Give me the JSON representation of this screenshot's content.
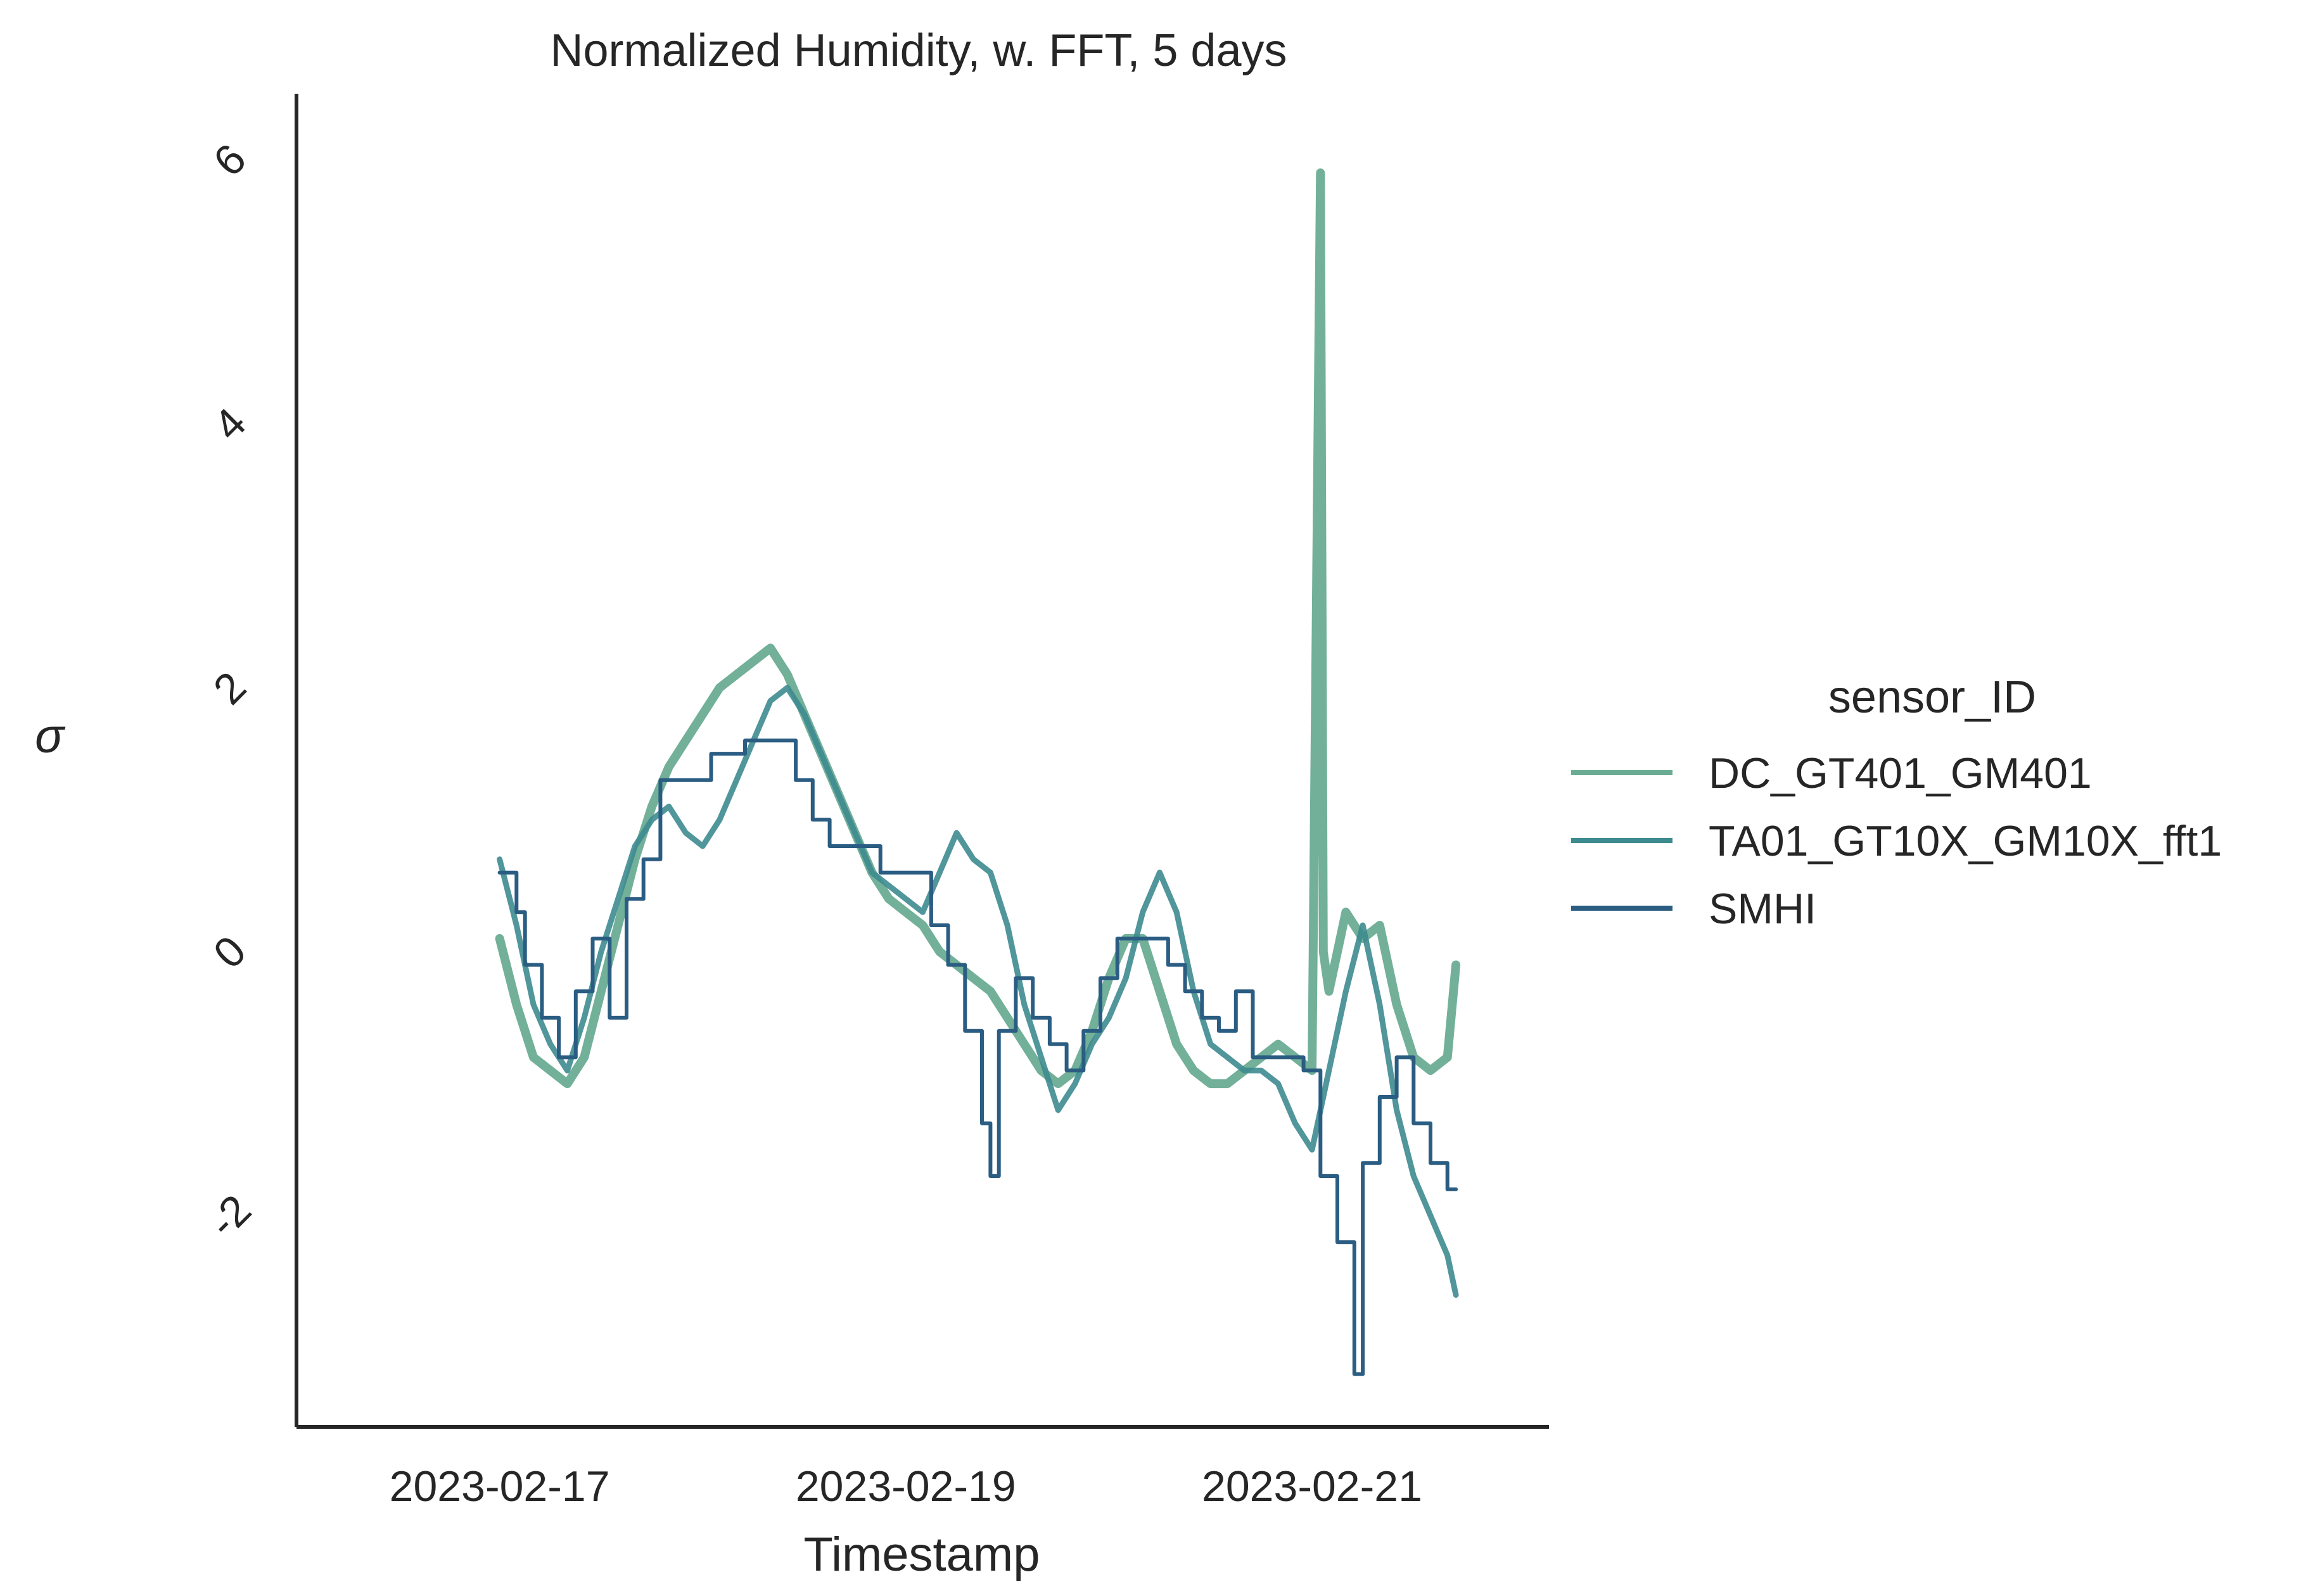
{
  "chart_data": {
    "type": "line",
    "title": "Normalized Humidity, w. FFT, 5 days",
    "xlabel": "Timestamp",
    "ylabel": "σ",
    "x_ticks": [
      "2023-02-17",
      "2023-02-19",
      "2023-02-21"
    ],
    "y_ticks": [
      -2,
      0,
      2,
      4,
      6
    ],
    "xlim": [
      "2023-02-16 00:00",
      "2023-02-22 04:00"
    ],
    "ylim": [
      -3.6,
      6.5
    ],
    "grid": false,
    "legend": {
      "title": "sensor_ID",
      "placement": "right"
    },
    "series": [
      {
        "name": "DC_GT401_GM401",
        "color": "#6aac93",
        "points": [
          [
            "2023-02-17 00:00",
            0.1
          ],
          [
            "2023-02-17 02:00",
            -0.4
          ],
          [
            "2023-02-17 04:00",
            -0.8
          ],
          [
            "2023-02-17 06:00",
            -0.9
          ],
          [
            "2023-02-17 08:00",
            -1.0
          ],
          [
            "2023-02-17 10:00",
            -0.8
          ],
          [
            "2023-02-17 12:00",
            -0.3
          ],
          [
            "2023-02-17 14:00",
            0.2
          ],
          [
            "2023-02-17 16:00",
            0.7
          ],
          [
            "2023-02-17 18:00",
            1.1
          ],
          [
            "2023-02-17 20:00",
            1.4
          ],
          [
            "2023-02-17 22:00",
            1.6
          ],
          [
            "2023-02-18 00:00",
            1.8
          ],
          [
            "2023-02-18 02:00",
            2.0
          ],
          [
            "2023-02-18 04:00",
            2.1
          ],
          [
            "2023-02-18 06:00",
            2.2
          ],
          [
            "2023-02-18 08:00",
            2.3
          ],
          [
            "2023-02-18 10:00",
            2.1
          ],
          [
            "2023-02-18 12:00",
            1.8
          ],
          [
            "2023-02-18 14:00",
            1.5
          ],
          [
            "2023-02-18 16:00",
            1.2
          ],
          [
            "2023-02-18 18:00",
            0.9
          ],
          [
            "2023-02-18 20:00",
            0.6
          ],
          [
            "2023-02-18 22:00",
            0.4
          ],
          [
            "2023-02-19 00:00",
            0.3
          ],
          [
            "2023-02-19 02:00",
            0.2
          ],
          [
            "2023-02-19 04:00",
            0.0
          ],
          [
            "2023-02-19 06:00",
            -0.1
          ],
          [
            "2023-02-19 08:00",
            -0.2
          ],
          [
            "2023-02-19 10:00",
            -0.3
          ],
          [
            "2023-02-19 12:00",
            -0.5
          ],
          [
            "2023-02-19 14:00",
            -0.7
          ],
          [
            "2023-02-19 16:00",
            -0.9
          ],
          [
            "2023-02-19 18:00",
            -1.0
          ],
          [
            "2023-02-19 20:00",
            -0.9
          ],
          [
            "2023-02-19 22:00",
            -0.6
          ],
          [
            "2023-02-20 00:00",
            -0.2
          ],
          [
            "2023-02-20 02:00",
            0.1
          ],
          [
            "2023-02-20 04:00",
            0.1
          ],
          [
            "2023-02-20 06:00",
            -0.3
          ],
          [
            "2023-02-20 08:00",
            -0.7
          ],
          [
            "2023-02-20 10:00",
            -0.9
          ],
          [
            "2023-02-20 12:00",
            -1.0
          ],
          [
            "2023-02-20 14:00",
            -1.0
          ],
          [
            "2023-02-20 16:00",
            -0.9
          ],
          [
            "2023-02-20 18:00",
            -0.8
          ],
          [
            "2023-02-20 20:00",
            -0.7
          ],
          [
            "2023-02-20 22:00",
            -0.8
          ],
          [
            "2023-02-21 00:00",
            -0.9
          ],
          [
            "2023-02-21 01:00",
            5.9
          ],
          [
            "2023-02-21 01:20",
            0.0
          ],
          [
            "2023-02-21 02:00",
            -0.3
          ],
          [
            "2023-02-21 04:00",
            0.3
          ],
          [
            "2023-02-21 06:00",
            0.1
          ],
          [
            "2023-02-21 08:00",
            0.2
          ],
          [
            "2023-02-21 10:00",
            -0.4
          ],
          [
            "2023-02-21 12:00",
            -0.8
          ],
          [
            "2023-02-21 14:00",
            -0.9
          ],
          [
            "2023-02-21 16:00",
            -0.8
          ],
          [
            "2023-02-21 17:00",
            -0.1
          ]
        ]
      },
      {
        "name": "TA01_GT10X_GM10X_fft1",
        "color": "#3d8b8f",
        "points": [
          [
            "2023-02-17 00:00",
            0.7
          ],
          [
            "2023-02-17 02:00",
            0.2
          ],
          [
            "2023-02-17 04:00",
            -0.4
          ],
          [
            "2023-02-17 06:00",
            -0.7
          ],
          [
            "2023-02-17 08:00",
            -0.9
          ],
          [
            "2023-02-17 10:00",
            -0.5
          ],
          [
            "2023-02-17 12:00",
            0.0
          ],
          [
            "2023-02-17 14:00",
            0.4
          ],
          [
            "2023-02-17 16:00",
            0.8
          ],
          [
            "2023-02-17 18:00",
            1.0
          ],
          [
            "2023-02-17 20:00",
            1.1
          ],
          [
            "2023-02-17 22:00",
            0.9
          ],
          [
            "2023-02-18 00:00",
            0.8
          ],
          [
            "2023-02-18 02:00",
            1.0
          ],
          [
            "2023-02-18 04:00",
            1.3
          ],
          [
            "2023-02-18 06:00",
            1.6
          ],
          [
            "2023-02-18 08:00",
            1.9
          ],
          [
            "2023-02-18 10:00",
            2.0
          ],
          [
            "2023-02-18 12:00",
            1.8
          ],
          [
            "2023-02-18 14:00",
            1.5
          ],
          [
            "2023-02-18 16:00",
            1.2
          ],
          [
            "2023-02-18 18:00",
            0.9
          ],
          [
            "2023-02-18 20:00",
            0.6
          ],
          [
            "2023-02-18 22:00",
            0.5
          ],
          [
            "2023-02-19 00:00",
            0.4
          ],
          [
            "2023-02-19 02:00",
            0.3
          ],
          [
            "2023-02-19 04:00",
            0.6
          ],
          [
            "2023-02-19 06:00",
            0.9
          ],
          [
            "2023-02-19 08:00",
            0.7
          ],
          [
            "2023-02-19 10:00",
            0.6
          ],
          [
            "2023-02-19 12:00",
            0.2
          ],
          [
            "2023-02-19 14:00",
            -0.4
          ],
          [
            "2023-02-19 16:00",
            -0.8
          ],
          [
            "2023-02-19 18:00",
            -1.2
          ],
          [
            "2023-02-19 20:00",
            -1.0
          ],
          [
            "2023-02-19 22:00",
            -0.7
          ],
          [
            "2023-02-20 00:00",
            -0.5
          ],
          [
            "2023-02-20 02:00",
            -0.2
          ],
          [
            "2023-02-20 04:00",
            0.3
          ],
          [
            "2023-02-20 06:00",
            0.6
          ],
          [
            "2023-02-20 08:00",
            0.3
          ],
          [
            "2023-02-20 10:00",
            -0.3
          ],
          [
            "2023-02-20 12:00",
            -0.7
          ],
          [
            "2023-02-20 14:00",
            -0.8
          ],
          [
            "2023-02-20 16:00",
            -0.9
          ],
          [
            "2023-02-20 18:00",
            -0.9
          ],
          [
            "2023-02-20 20:00",
            -1.0
          ],
          [
            "2023-02-20 22:00",
            -1.3
          ],
          [
            "2023-02-21 00:00",
            -1.5
          ],
          [
            "2023-02-21 02:00",
            -0.9
          ],
          [
            "2023-02-21 04:00",
            -0.3
          ],
          [
            "2023-02-21 06:00",
            0.2
          ],
          [
            "2023-02-21 08:00",
            -0.4
          ],
          [
            "2023-02-21 10:00",
            -1.2
          ],
          [
            "2023-02-21 12:00",
            -1.7
          ],
          [
            "2023-02-21 14:00",
            -2.0
          ],
          [
            "2023-02-21 16:00",
            -2.3
          ],
          [
            "2023-02-21 17:00",
            -2.6
          ]
        ]
      },
      {
        "name": "SMHI",
        "color": "#2b5d82",
        "points": [
          [
            "2023-02-17 00:00",
            0.6
          ],
          [
            "2023-02-17 02:00",
            0.3
          ],
          [
            "2023-02-17 03:00",
            -0.1
          ],
          [
            "2023-02-17 05:00",
            -0.5
          ],
          [
            "2023-02-17 07:00",
            -0.8
          ],
          [
            "2023-02-17 09:00",
            -0.3
          ],
          [
            "2023-02-17 11:00",
            0.1
          ],
          [
            "2023-02-17 13:00",
            -0.5
          ],
          [
            "2023-02-17 15:00",
            0.4
          ],
          [
            "2023-02-17 17:00",
            0.7
          ],
          [
            "2023-02-17 19:00",
            1.3
          ],
          [
            "2023-02-17 22:00",
            1.3
          ],
          [
            "2023-02-18 01:00",
            1.5
          ],
          [
            "2023-02-18 05:00",
            1.6
          ],
          [
            "2023-02-18 09:00",
            1.6
          ],
          [
            "2023-02-18 11:00",
            1.3
          ],
          [
            "2023-02-18 13:00",
            1.0
          ],
          [
            "2023-02-18 15:00",
            0.8
          ],
          [
            "2023-02-18 19:00",
            0.8
          ],
          [
            "2023-02-18 21:00",
            0.6
          ],
          [
            "2023-02-19 01:00",
            0.6
          ],
          [
            "2023-02-19 03:00",
            0.2
          ],
          [
            "2023-02-19 05:00",
            -0.1
          ],
          [
            "2023-02-19 07:00",
            -0.6
          ],
          [
            "2023-02-19 09:00",
            -1.3
          ],
          [
            "2023-02-19 10:00",
            -1.7
          ],
          [
            "2023-02-19 11:00",
            -0.6
          ],
          [
            "2023-02-19 13:00",
            -0.2
          ],
          [
            "2023-02-19 15:00",
            -0.5
          ],
          [
            "2023-02-19 17:00",
            -0.7
          ],
          [
            "2023-02-19 19:00",
            -0.9
          ],
          [
            "2023-02-19 21:00",
            -0.6
          ],
          [
            "2023-02-19 23:00",
            -0.2
          ],
          [
            "2023-02-20 01:00",
            0.1
          ],
          [
            "2023-02-20 03:00",
            0.1
          ],
          [
            "2023-02-20 05:00",
            0.1
          ],
          [
            "2023-02-20 07:00",
            -0.1
          ],
          [
            "2023-02-20 09:00",
            -0.3
          ],
          [
            "2023-02-20 11:00",
            -0.5
          ],
          [
            "2023-02-20 13:00",
            -0.6
          ],
          [
            "2023-02-20 15:00",
            -0.3
          ],
          [
            "2023-02-20 17:00",
            -0.8
          ],
          [
            "2023-02-20 19:00",
            -0.8
          ],
          [
            "2023-02-20 21:00",
            -0.8
          ],
          [
            "2023-02-20 23:00",
            -0.9
          ],
          [
            "2023-02-21 01:00",
            -1.7
          ],
          [
            "2023-02-21 03:00",
            -2.2
          ],
          [
            "2023-02-21 05:00",
            -3.2
          ],
          [
            "2023-02-21 06:00",
            -1.6
          ],
          [
            "2023-02-21 08:00",
            -1.1
          ],
          [
            "2023-02-21 10:00",
            -0.8
          ],
          [
            "2023-02-21 12:00",
            -1.3
          ],
          [
            "2023-02-21 14:00",
            -1.6
          ],
          [
            "2023-02-21 16:00",
            -1.8
          ],
          [
            "2023-02-21 17:00",
            -1.8
          ]
        ]
      }
    ]
  }
}
